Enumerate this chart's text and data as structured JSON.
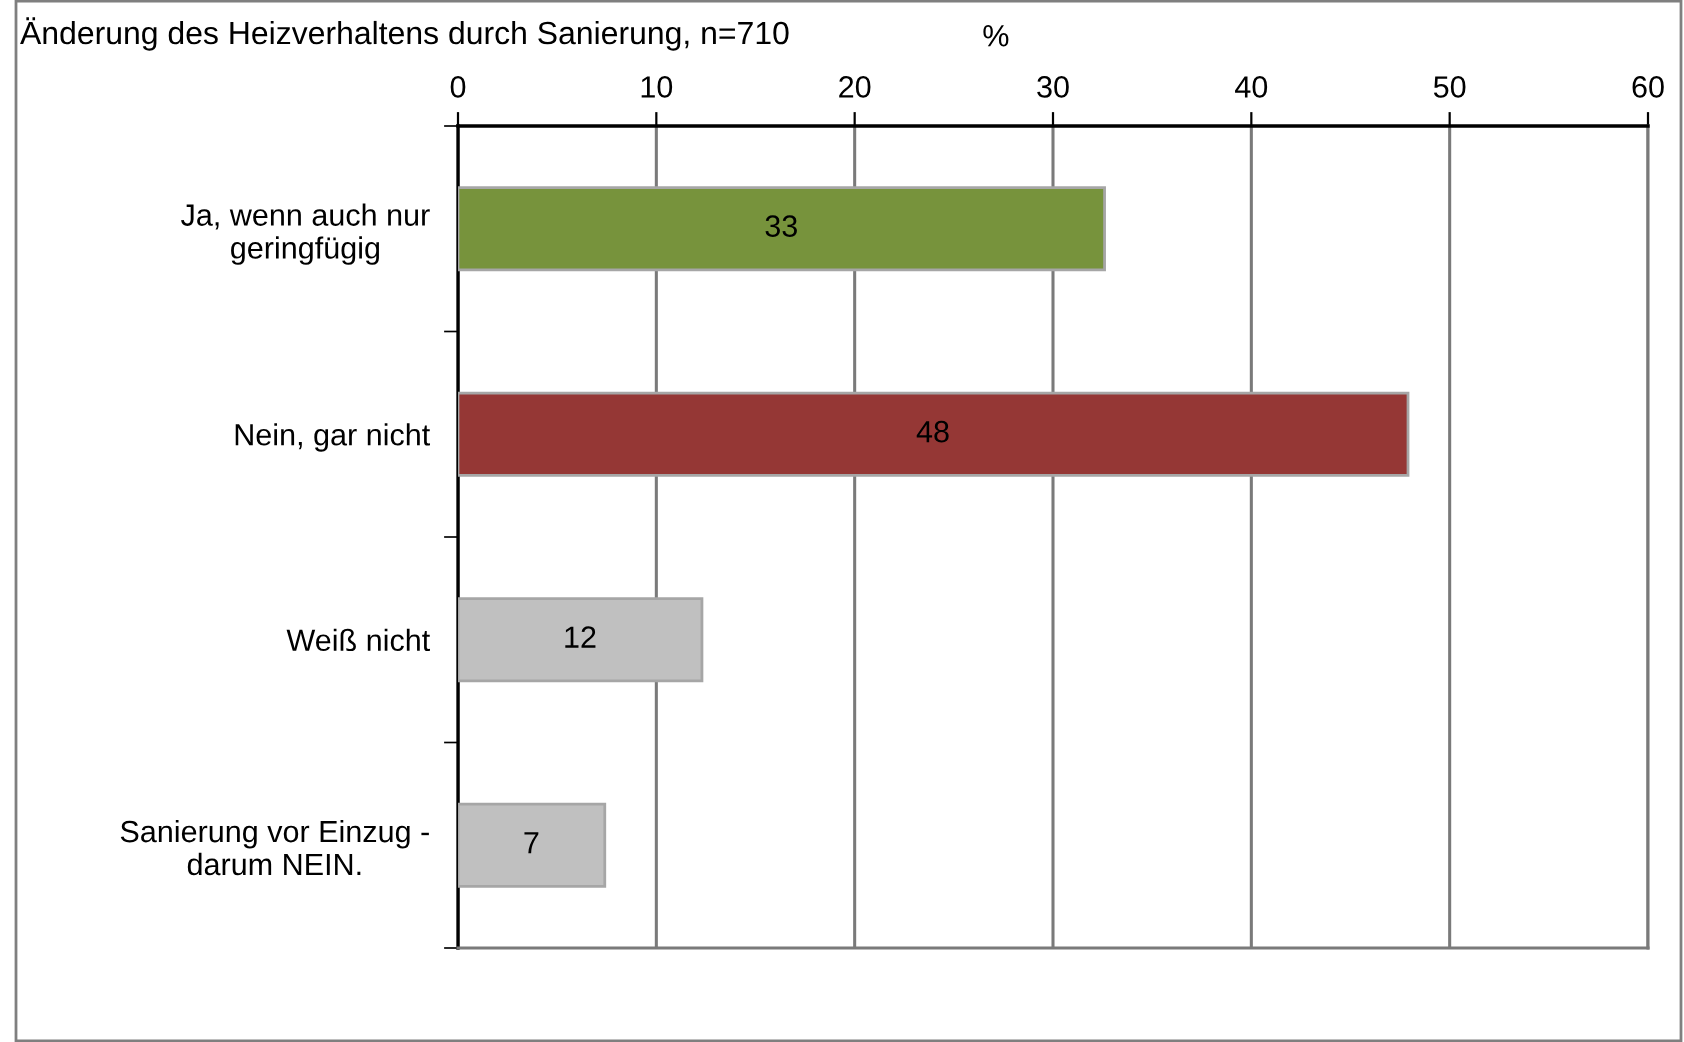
{
  "chart_data": {
    "type": "bar",
    "orientation": "horizontal",
    "title": "Änderung des Heizverhaltens durch Sanierung, n=710",
    "xlabel": "%",
    "categories": [
      "Ja, wenn auch nur\ngeringfügig",
      "Nein, gar nicht",
      "Weiß nicht",
      "Sanierung vor Einzug -\ndarum NEIN."
    ],
    "values": [
      32.6,
      47.9,
      12.3,
      7.4
    ],
    "colors": [
      "#77933c",
      "#953735",
      "#c0c0c0",
      "#c0c0c0"
    ],
    "value_labels": [
      "33",
      "48",
      "12",
      "7"
    ],
    "xlim": [
      0,
      60
    ],
    "xticks": [
      0,
      10,
      20,
      30,
      40,
      50,
      60
    ],
    "grid": "x"
  }
}
